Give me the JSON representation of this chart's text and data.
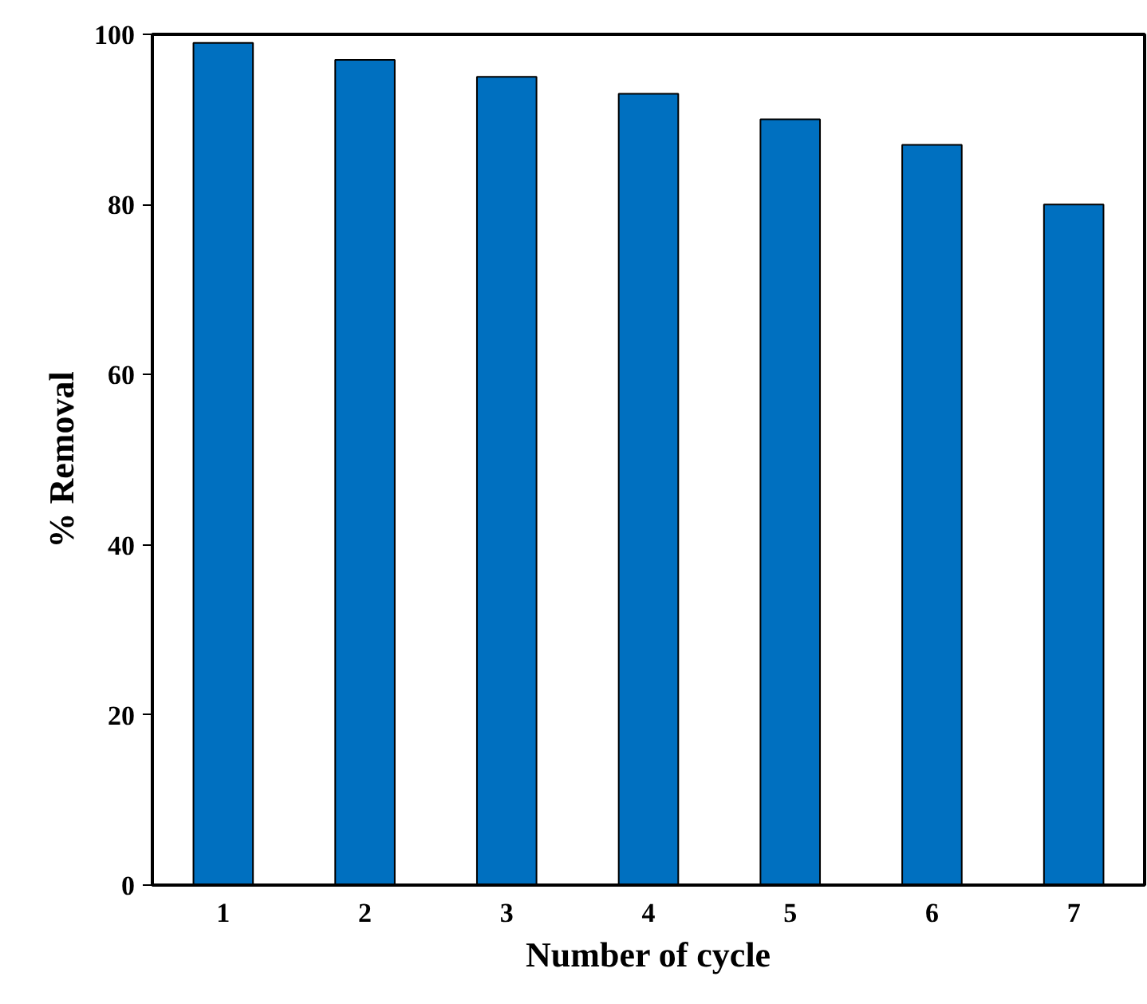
{
  "chart_data": {
    "type": "bar",
    "xlabel": "Number of cycle",
    "ylabel": "% Removal",
    "categories": [
      "1",
      "2",
      "3",
      "4",
      "5",
      "6",
      "7"
    ],
    "values": [
      99,
      97,
      95,
      93,
      90,
      87,
      80
    ],
    "color": "#0070c0",
    "ylim": [
      0,
      100
    ],
    "yticks": [
      0,
      20,
      40,
      60,
      80,
      100
    ],
    "grid": false
  }
}
